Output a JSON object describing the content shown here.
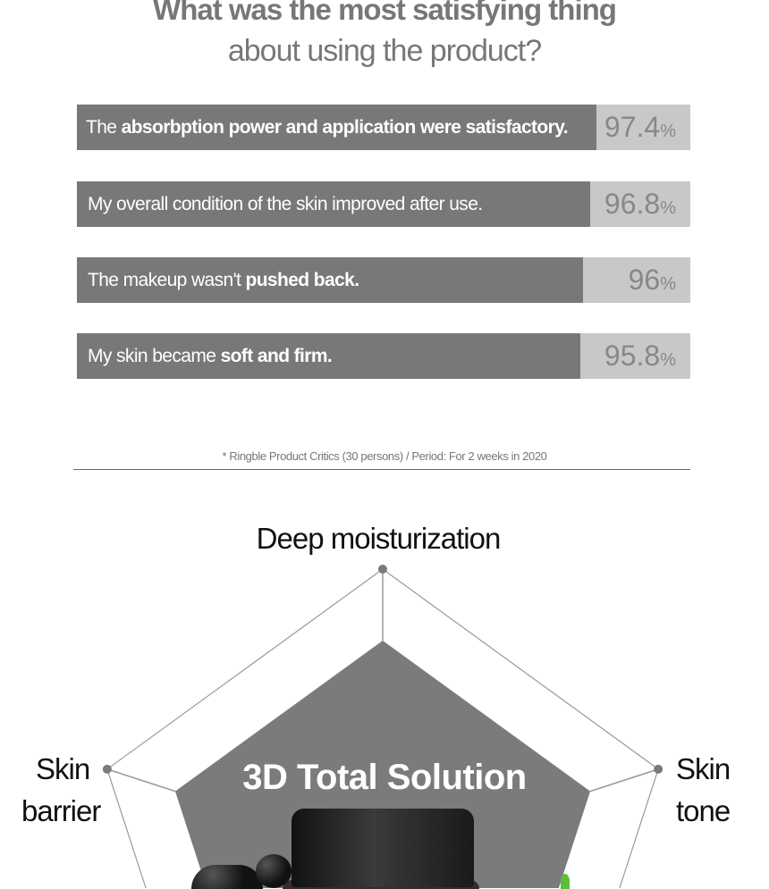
{
  "title_line1": "What was the most satisfying thing",
  "title_line2": "about using the product?",
  "chart_data": [
    {
      "type": "bar",
      "orientation": "horizontal",
      "xlim": [
        0,
        100
      ],
      "unit": "%",
      "categories": [
        {
          "plain": "The ",
          "bold": "absorbption power and application were satisfactory."
        },
        {
          "plain": "My overall condition of the skin improved after use.",
          "bold": ""
        },
        {
          "plain": "The makeup wasn't ",
          "bold": "pushed back."
        },
        {
          "plain": "My skin became ",
          "bold": "soft and firm."
        }
      ],
      "values": [
        97.4,
        96.8,
        96,
        95.8
      ],
      "value_labels": [
        "97.4",
        "96.8",
        "96",
        "95.8"
      ],
      "colors": {
        "fill": "#787878",
        "track": "#c8c8c8"
      }
    },
    {
      "type": "radar",
      "axes_visible": [
        "Deep moisturization",
        "Skin tone",
        "Skin barrier"
      ],
      "axis_label_lines": {
        "deep": "Deep moisturization",
        "tone": [
          "Skin",
          "tone"
        ],
        "barrier": [
          "Skin",
          "barrier"
        ]
      },
      "center_title": "3D Total Solution",
      "colors": {
        "fill": "#7b7b7b",
        "outline": "#999999"
      }
    }
  ],
  "footnote": "* Ringble Product Critics (30 persons) / Period: For 2 weeks in 2020"
}
